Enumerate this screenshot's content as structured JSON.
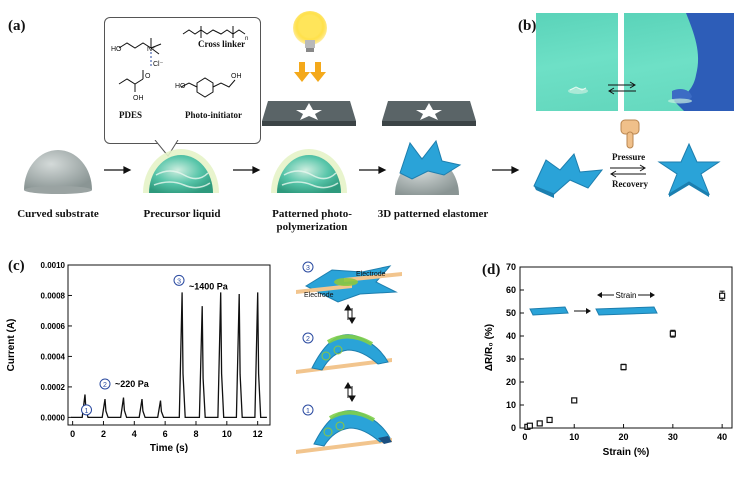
{
  "panels": {
    "a": "(a)",
    "b": "(b)",
    "c": "(c)",
    "d": "(d)"
  },
  "process": {
    "steps": [
      {
        "caption_lines": [
          "Curved substrate"
        ]
      },
      {
        "caption_lines": [
          "Precursor liquid"
        ]
      },
      {
        "caption_lines": [
          "Patterned photo-",
          "polymerization"
        ]
      },
      {
        "caption_lines": [
          "3D patterned elastomer"
        ]
      }
    ],
    "chemicals": {
      "pdes": "PDES",
      "cross_linker": "Cross linker",
      "photo_initiator": "Photo-initiator",
      "chloride": "Cl⁻",
      "n_plus": "N⁺",
      "repeat_n": "n"
    },
    "pressure_label": "Pressure",
    "recovery_label": "Recovery"
  },
  "panel_c_diagram": {
    "electrode_left": "Electrode",
    "electrode_right": "Electrode",
    "states": [
      "3",
      "2",
      "1"
    ]
  },
  "chart_data": [
    {
      "type": "line",
      "xlabel": "Time (s)",
      "ylabel": "Current (A)",
      "xlim": [
        -0.3,
        12.8
      ],
      "ylim": [
        -5e-05,
        0.001
      ],
      "xticks": [
        0,
        2,
        4,
        6,
        8,
        10,
        12
      ],
      "yticks": [
        "0.0000",
        "0.0002",
        "0.0004",
        "0.0006",
        "0.0008",
        "0.0010"
      ],
      "series": [
        {
          "peaks": [
            {
              "t": 0.8,
              "i": 0.00015
            },
            {
              "t": 2.1,
              "i": 0.00012
            },
            {
              "t": 3.3,
              "i": 0.00013
            },
            {
              "t": 4.5,
              "i": 0.00012
            },
            {
              "t": 5.7,
              "i": 0.00011
            },
            {
              "t": 7.1,
              "i": 0.00082
            },
            {
              "t": 8.4,
              "i": 0.00073
            },
            {
              "t": 9.6,
              "i": 0.00082
            },
            {
              "t": 10.8,
              "i": 0.00081
            },
            {
              "t": 12.0,
              "i": 0.00082
            }
          ]
        }
      ],
      "annotations": [
        {
          "marker": "1",
          "text": ""
        },
        {
          "marker": "2",
          "text": "~220 Pa"
        },
        {
          "marker": "3",
          "text": "~1400 Pa"
        }
      ]
    },
    {
      "type": "scatter",
      "xlabel": "Strain (%)",
      "ylabel": "ΔR/R₀ (%)",
      "xlim": [
        -1,
        42
      ],
      "ylim": [
        0,
        70
      ],
      "xticks": [
        0,
        10,
        20,
        30,
        40
      ],
      "yticks": [
        0,
        10,
        20,
        30,
        40,
        50,
        60,
        70
      ],
      "points": [
        {
          "x": 0.5,
          "y": 0.5,
          "err": 0.5
        },
        {
          "x": 1,
          "y": 1,
          "err": 0.5
        },
        {
          "x": 3,
          "y": 2,
          "err": 0.5
        },
        {
          "x": 5,
          "y": 3.5,
          "err": 0.7
        },
        {
          "x": 10,
          "y": 12,
          "err": 0.8
        },
        {
          "x": 20,
          "y": 26.5,
          "err": 1.2
        },
        {
          "x": 30,
          "y": 41,
          "err": 1.5
        },
        {
          "x": 40,
          "y": 57.5,
          "err": 2
        }
      ],
      "inset_label": "Strain"
    }
  ]
}
